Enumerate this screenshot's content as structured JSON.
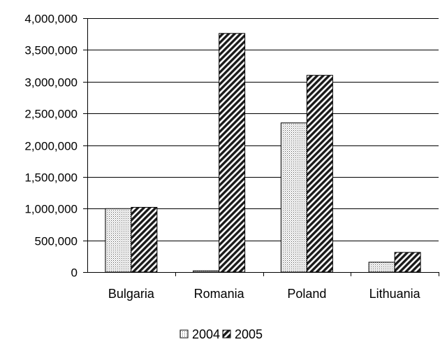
{
  "chart_data": {
    "type": "bar",
    "title": "",
    "xlabel": "",
    "ylabel": "",
    "categories": [
      "Bulgaria",
      "Romania",
      "Poland",
      "Lithuania"
    ],
    "series": [
      {
        "name": "2004",
        "values": [
          1000000,
          20000,
          2350000,
          155000
        ],
        "pattern": "dots"
      },
      {
        "name": "2005",
        "values": [
          1020000,
          3760000,
          3100000,
          310000
        ],
        "pattern": "hatch"
      }
    ],
    "ylim": [
      0,
      4000000
    ],
    "yticks": [
      0,
      500000,
      1000000,
      1500000,
      2000000,
      2500000,
      3000000,
      3500000,
      4000000
    ],
    "ytick_labels": [
      "0",
      "500,000",
      "1,000,000",
      "1,500,000",
      "2,000,000",
      "2,500,000",
      "3,000,000",
      "3,500,000",
      "4,000,000"
    ],
    "grid": true,
    "legend_position": "bottom"
  }
}
